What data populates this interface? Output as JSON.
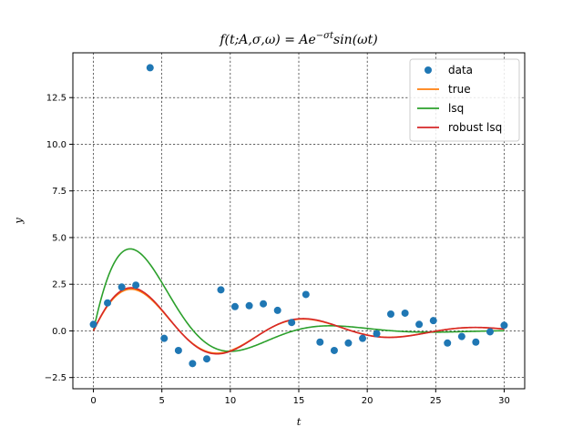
{
  "chart_data": {
    "type": "line",
    "title": "f(t; A, σ, ω) = Ae^{−σt} sin(ωt)",
    "title_parts": {
      "prefix": "f(t;A,σ,ω) = Ae",
      "superscript": "−σt",
      "suffix": "sin(ωt)"
    },
    "xlabel": "t",
    "ylabel": "y",
    "xlim": [
      -1.5,
      31.5
    ],
    "ylim": [
      -3.1,
      14.9
    ],
    "xticks": [
      0,
      5,
      10,
      15,
      20,
      25,
      30
    ],
    "xtick_labels": [
      "0",
      "5",
      "10",
      "15",
      "20",
      "25",
      "30"
    ],
    "yticks": [
      -2.5,
      0.0,
      2.5,
      5.0,
      7.5,
      10.0,
      12.5
    ],
    "ytick_labels": [
      "−2.5",
      "0.0",
      "2.5",
      "5.0",
      "7.5",
      "10.0",
      "12.5"
    ],
    "grid": true,
    "legend_position": "top-right",
    "series": [
      {
        "name": "data",
        "kind": "scatter",
        "color": "#1f77b4",
        "x": [
          0,
          1.03,
          2.07,
          3.1,
          4.14,
          5.17,
          6.21,
          7.24,
          8.28,
          9.31,
          10.34,
          11.38,
          12.41,
          13.45,
          14.48,
          15.52,
          16.55,
          17.59,
          18.62,
          19.66,
          20.69,
          21.72,
          22.76,
          23.79,
          24.83,
          25.86,
          26.9,
          27.93,
          28.97,
          30.0
        ],
        "y": [
          0.35,
          1.5,
          2.35,
          2.45,
          14.1,
          -0.4,
          -1.05,
          -1.75,
          -1.5,
          2.2,
          1.3,
          1.35,
          1.45,
          1.1,
          0.45,
          1.95,
          -0.6,
          -1.05,
          -0.65,
          -0.4,
          -0.15,
          0.9,
          0.95,
          0.35,
          0.55,
          -0.65,
          -0.3,
          -0.6,
          -0.05,
          0.3
        ]
      },
      {
        "name": "true",
        "kind": "line",
        "color": "#ff7f0e",
        "params": {
          "A": 3.0,
          "sigma": 0.1,
          "omega": 0.5
        }
      },
      {
        "name": "lsq",
        "kind": "line",
        "color": "#2ca02c",
        "params": {
          "A": 8.0,
          "sigma": 0.19,
          "omega": 0.43
        }
      },
      {
        "name": "robust lsq",
        "kind": "line",
        "color": "#d62728",
        "params": {
          "A": 3.1,
          "sigma": 0.1,
          "omega": 0.5
        }
      }
    ]
  }
}
